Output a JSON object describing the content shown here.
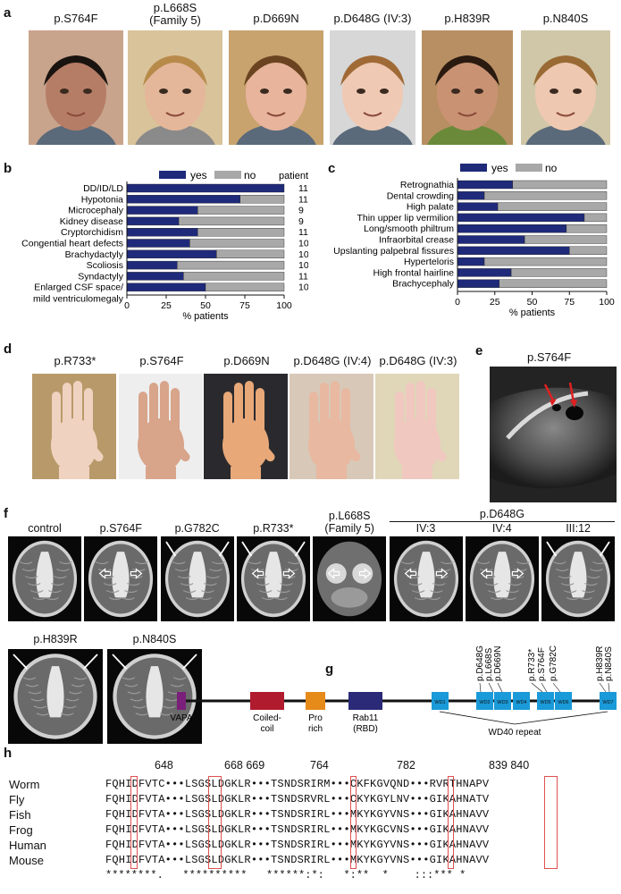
{
  "panel_a": {
    "letter": "a",
    "labels": [
      "p.S764F",
      "p.L668S\n(Family 5)",
      "p.D669N",
      "p.D648G (IV:3)",
      "p.H839R",
      "p.N840S"
    ]
  },
  "panel_b": {
    "letter": "b",
    "legend_yes": "yes",
    "legend_no": "no",
    "patients_header": "patients",
    "xlabel": "% patients"
  },
  "panel_c": {
    "letter": "c",
    "legend_yes": "yes",
    "legend_no": "no",
    "xlabel": "% patients"
  },
  "panel_d": {
    "letter": "d",
    "labels": [
      "p.R733*",
      "p.S764F",
      "p.D669N",
      "p.D648G (IV:4)",
      "p.D648G (IV:3)"
    ]
  },
  "panel_e": {
    "letter": "e",
    "label": "p.S764F"
  },
  "panel_f": {
    "letter": "f",
    "labels_row1": [
      "control",
      "p.S764F",
      "p.G782C",
      "p.R733*",
      "p.L668S\n(Family 5)"
    ],
    "group_label": "p.D648G",
    "group_members": [
      "IV:3",
      "IV:4",
      "III:12"
    ],
    "labels_row2": [
      "p.H839R",
      "p.N840S"
    ]
  },
  "panel_g": {
    "letter": "g",
    "domains": [
      "VAPA",
      "Coiled-\ncoil",
      "Pro\nrich",
      "Rab11\n(RBD)"
    ],
    "wd_boxes": [
      "WD1",
      "WD2",
      "WD3",
      "WD4",
      "WD5",
      "WD6",
      "WD7"
    ],
    "wd_repeat_label": "WD40 repeat",
    "variants": [
      "p.D648G",
      "p.L668S",
      "p.D669N",
      "p.R733*",
      "p.S764F",
      "p.G782C",
      "p.H839R",
      "p.N840S"
    ]
  },
  "panel_h": {
    "letter": "h",
    "positions": [
      "648",
      "668 669",
      "764",
      "782",
      "839 840"
    ],
    "species": [
      "Worm",
      "Fly",
      "Fish",
      "Frog",
      "Human",
      "Mouse"
    ],
    "sequences": [
      "FQHIDFVTC•••LSGSLDGKLR•••TSNDSRIRM•••CKFKGVQND•••RVRTHNAPV",
      "FQHIDFVTA•••LSGSLDGKLR•••TSNDSRVRL•••CKYKGYLNV•••GIKAHNATV",
      "FQHIDFVTA•••LSGSLDGKLR•••TSNDSRIRL•••MKYKGYVNS•••GIKAHNAVV",
      "FQHIDFVTA•••LSGSLDGKLR•••TSNDSRIRL•••MKYKGCVNS•••GIKAHNAVV",
      "FQHIDFVTA•••LSGSLDGKLR•••TSNDSRIRL•••MKYKGYVNS•••GIKAHNAVV",
      "FQHIDFVTA•••LSGSLDGKLR•••TSNDSRIRL•••MKYKGYVNS•••GIKAHNAVV"
    ],
    "conservation": "********.   **********   ******:*:   *:**  *    :::*** *"
  },
  "chart_data": [
    {
      "type": "bar",
      "stacked": true,
      "orientation": "horizontal",
      "categories": [
        "DD/ID/LD",
        "Hypotonia",
        "Microcephaly",
        "Kidney disease",
        "Cryptorchidism",
        "Congential heart defects",
        "Brachydactyly",
        "Scoliosis",
        "Syndactyly",
        "Enlarged CSF space/\nmild ventriculomegaly"
      ],
      "series": [
        {
          "name": "yes",
          "values": [
            100,
            72,
            45,
            33,
            45,
            40,
            57,
            32,
            36,
            50
          ]
        },
        {
          "name": "no",
          "values": [
            0,
            28,
            55,
            67,
            55,
            60,
            43,
            68,
            64,
            50
          ]
        }
      ],
      "patients": [
        "11",
        "11",
        "9",
        "9",
        "11",
        "10",
        "10",
        "10",
        "11",
        "10"
      ],
      "xlabel": "% patients",
      "xlim": [
        0,
        100
      ],
      "xticks": [
        "0",
        "25",
        "50",
        "75",
        "100"
      ],
      "colors": {
        "yes": "#1f2a7a",
        "no": "#a8a8a8"
      }
    },
    {
      "type": "bar",
      "stacked": true,
      "orientation": "horizontal",
      "categories": [
        "Retrognathia",
        "Dental crowding",
        "High palate",
        "Thin upper lip vermilion",
        "Long/smooth philtrum",
        "Infraorbital crease",
        "Upslanting palpebral fissures",
        "Hyperteloris",
        "High frontal hairline",
        "Brachycephaly"
      ],
      "series": [
        {
          "name": "yes",
          "values": [
            37,
            18,
            27,
            85,
            73,
            45,
            75,
            18,
            36,
            28
          ]
        },
        {
          "name": "no",
          "values": [
            63,
            82,
            73,
            15,
            27,
            55,
            25,
            82,
            64,
            72
          ]
        }
      ],
      "xlabel": "% patients",
      "xlim": [
        0,
        100
      ],
      "xticks": [
        "0",
        "25",
        "50",
        "75",
        "100"
      ],
      "colors": {
        "yes": "#1f2a7a",
        "no": "#a8a8a8"
      }
    }
  ]
}
